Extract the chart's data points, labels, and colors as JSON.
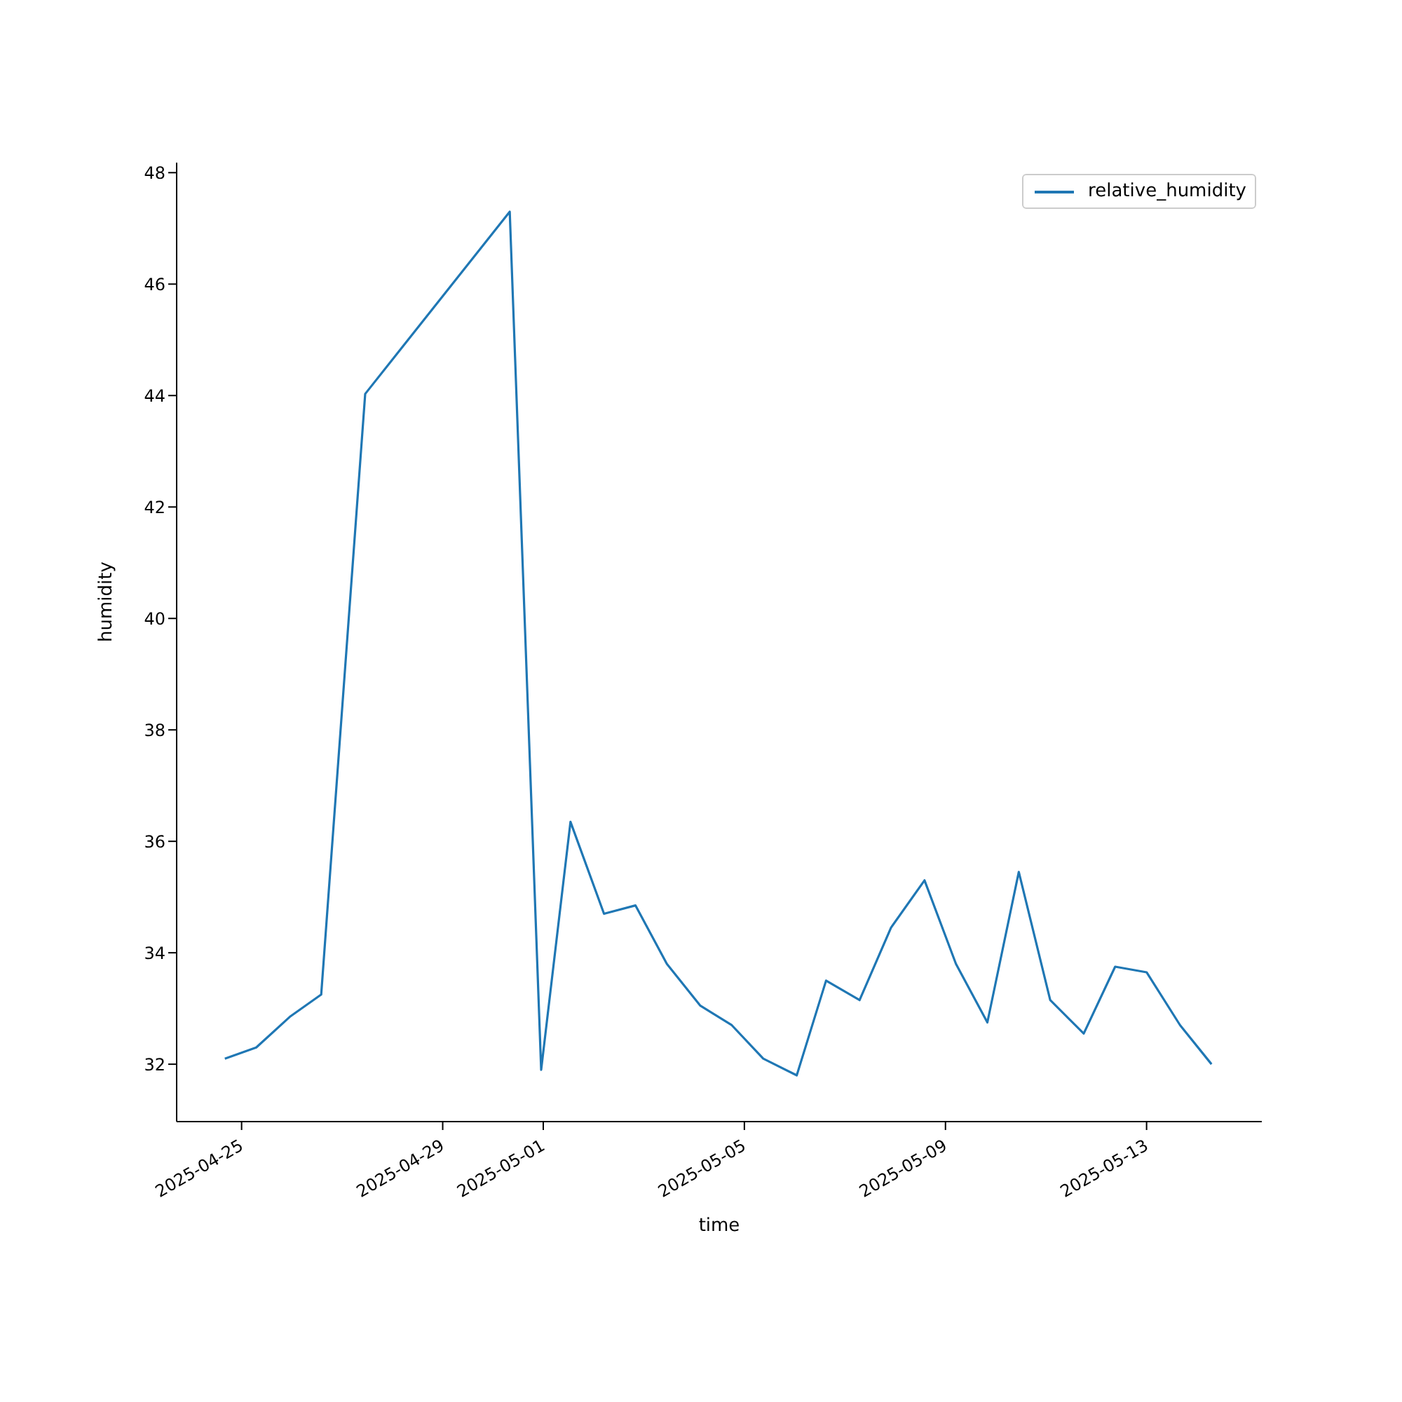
{
  "chart_data": {
    "type": "line",
    "xlabel": "time",
    "ylabel": "humidity",
    "x": [
      "2025-04-24T16:00",
      "2025-04-25T07:00",
      "2025-04-25T23:00",
      "2025-04-26T14:00",
      "2025-04-27T11:00",
      "2025-04-30T08:00",
      "2025-04-30T23:00",
      "2025-05-01T13:00",
      "2025-05-02T05:00",
      "2025-05-02T20:00",
      "2025-05-03T11:00",
      "2025-05-04T03:00",
      "2025-05-04T18:00",
      "2025-05-05T09:00",
      "2025-05-06T01:00",
      "2025-05-06T15:00",
      "2025-05-07T07:00",
      "2025-05-07T22:00",
      "2025-05-08T14:00",
      "2025-05-09T05:00",
      "2025-05-09T20:00",
      "2025-05-10T11:00",
      "2025-05-11T02:00",
      "2025-05-11T18:00",
      "2025-05-12T09:00",
      "2025-05-13T00:00",
      "2025-05-13T16:00",
      "2025-05-14T07:00"
    ],
    "series": [
      {
        "name": "relative_humidity",
        "color": "#1f77b4",
        "values": [
          32.1,
          32.3,
          32.85,
          33.25,
          44.03,
          47.3,
          31.9,
          36.35,
          34.7,
          34.85,
          33.8,
          33.05,
          32.7,
          32.1,
          31.8,
          33.5,
          33.15,
          34.45,
          35.3,
          33.8,
          32.75,
          35.45,
          33.15,
          32.55,
          33.75,
          33.65,
          32.7,
          32.0
        ]
      }
    ],
    "xlim": [
      "2025-04-23T17:00",
      "2025-05-15T07:00"
    ],
    "xticks": [
      "2025-04-25",
      "2025-04-29",
      "2025-05-01",
      "2025-05-05",
      "2025-05-09",
      "2025-05-13"
    ],
    "ylim": [
      30.97,
      48.18
    ],
    "yticks": [
      32,
      34,
      36,
      38,
      40,
      42,
      44,
      46,
      48
    ],
    "legend": "top right",
    "grid": false,
    "marker": "none",
    "line_style": "solid"
  }
}
